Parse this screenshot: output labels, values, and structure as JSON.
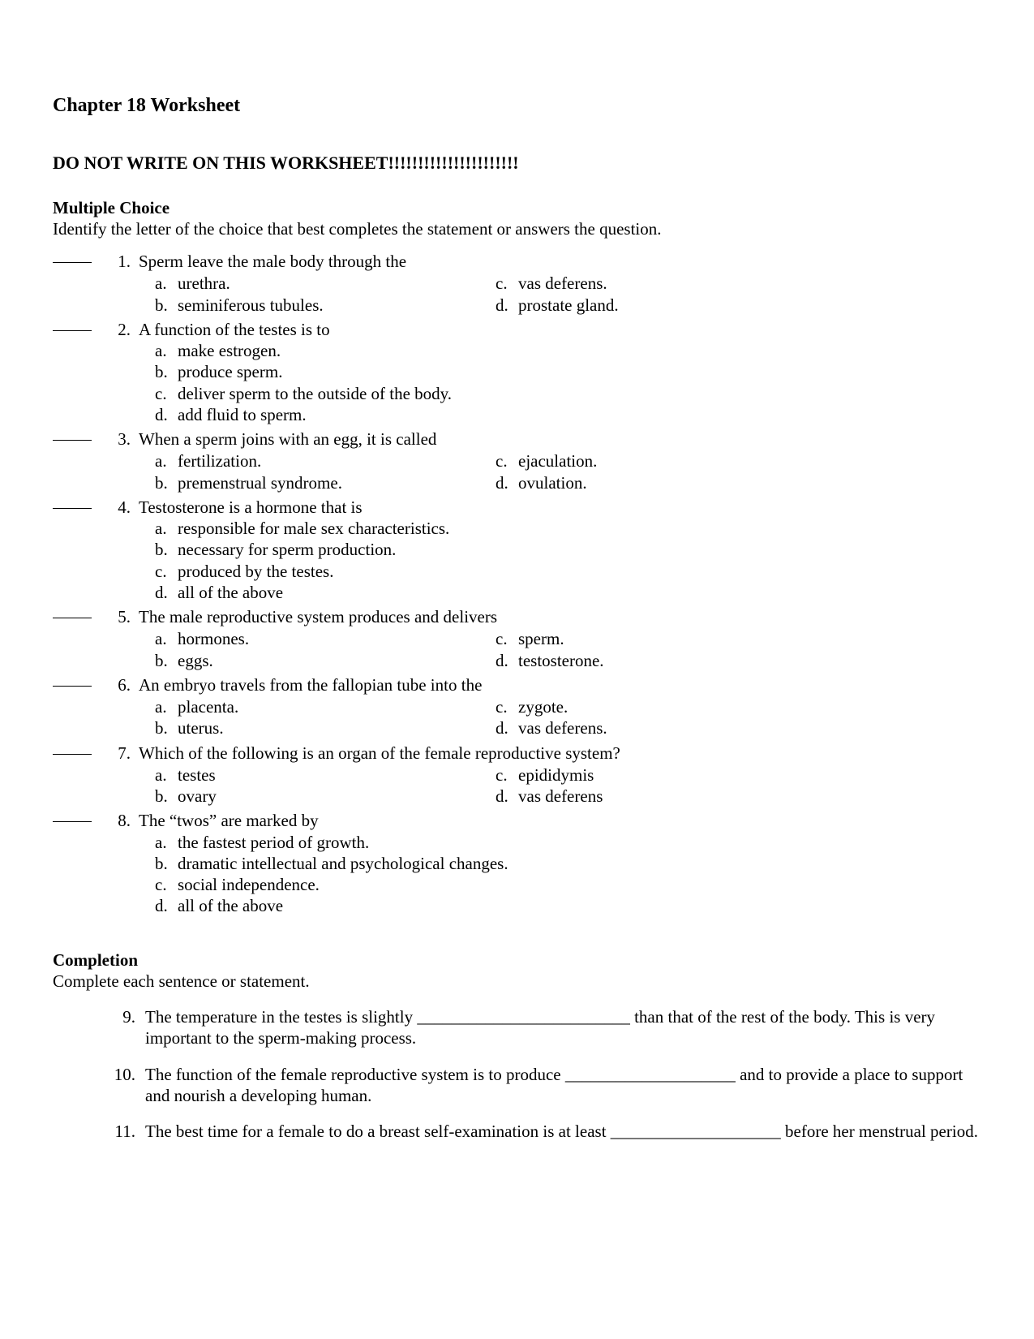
{
  "title": "Chapter 18 Worksheet",
  "warning": "DO NOT WRITE ON THIS WORKSHEET!!!!!!!!!!!!!!!!!!!!!!",
  "section_mc_head": "Multiple Choice",
  "section_mc_sub": "Identify the letter of the choice that best completes the statement or answers the question.",
  "section_comp_head": "Completion",
  "section_comp_sub": "Complete each sentence or statement.",
  "mc": [
    {
      "n": "1.",
      "stem": "Sperm leave the male body through the",
      "layout": "two-col",
      "left": [
        {
          "l": "a.",
          "t": "urethra."
        },
        {
          "l": "b.",
          "t": "seminiferous tubules."
        }
      ],
      "right": [
        {
          "l": "c.",
          "t": "vas deferens."
        },
        {
          "l": "d.",
          "t": "prostate gland."
        }
      ]
    },
    {
      "n": "2.",
      "stem": "A function of the testes is to",
      "layout": "stack",
      "left": [
        {
          "l": "a.",
          "t": "make estrogen."
        },
        {
          "l": "b.",
          "t": "produce sperm."
        },
        {
          "l": "c.",
          "t": "deliver sperm to the outside of the body."
        },
        {
          "l": "d.",
          "t": "add fluid to sperm."
        }
      ],
      "right": []
    },
    {
      "n": "3.",
      "stem": "When a sperm joins with an egg, it is called",
      "layout": "two-col",
      "left": [
        {
          "l": "a.",
          "t": "fertilization."
        },
        {
          "l": "b.",
          "t": "premenstrual syndrome."
        }
      ],
      "right": [
        {
          "l": "c.",
          "t": "ejaculation."
        },
        {
          "l": "d.",
          "t": "ovulation."
        }
      ]
    },
    {
      "n": "4.",
      "stem": "Testosterone is a hormone that is",
      "layout": "stack",
      "left": [
        {
          "l": "a.",
          "t": "responsible for male sex characteristics."
        },
        {
          "l": "b.",
          "t": "necessary for sperm production."
        },
        {
          "l": "c.",
          "t": "produced by the testes."
        },
        {
          "l": "d.",
          "t": "all of the above"
        }
      ],
      "right": []
    },
    {
      "n": "5.",
      "stem": "The male reproductive system produces and delivers",
      "layout": "two-col",
      "left": [
        {
          "l": "a.",
          "t": "hormones."
        },
        {
          "l": "b.",
          "t": "eggs."
        }
      ],
      "right": [
        {
          "l": "c.",
          "t": "sperm."
        },
        {
          "l": "d.",
          "t": "testosterone."
        }
      ]
    },
    {
      "n": "6.",
      "stem": "An embryo travels from the fallopian tube into the",
      "layout": "two-col",
      "left": [
        {
          "l": "a.",
          "t": "placenta."
        },
        {
          "l": "b.",
          "t": "uterus."
        }
      ],
      "right": [
        {
          "l": "c.",
          "t": "zygote."
        },
        {
          "l": "d.",
          "t": "vas deferens."
        }
      ]
    },
    {
      "n": "7.",
      "stem": "Which of the following is an organ of the female reproductive system?",
      "layout": "two-col",
      "left": [
        {
          "l": "a.",
          "t": "testes"
        },
        {
          "l": "b.",
          "t": "ovary"
        }
      ],
      "right": [
        {
          "l": "c.",
          "t": "epididymis"
        },
        {
          "l": "d.",
          "t": "vas deferens"
        }
      ]
    },
    {
      "n": "8.",
      "stem": "The “twos” are marked by",
      "layout": "stack",
      "left": [
        {
          "l": "a.",
          "t": "the fastest period of growth."
        },
        {
          "l": "b.",
          "t": "dramatic intellectual and psychological changes."
        },
        {
          "l": "c.",
          "t": "social independence."
        },
        {
          "l": "d.",
          "t": "all of the above"
        }
      ],
      "right": []
    }
  ],
  "comp": [
    {
      "n": "9.",
      "t": "The temperature in the testes is slightly _________________________ than that of the rest of the body. This is very important to the sperm-making process."
    },
    {
      "n": "10.",
      "t": "The function of the female reproductive system is to produce ____________________ and to provide a place to support and nourish a developing human."
    },
    {
      "n": "11.",
      "t": "The best time for a female to do a breast self-examination is at least ____________________ before her menstrual period."
    }
  ]
}
